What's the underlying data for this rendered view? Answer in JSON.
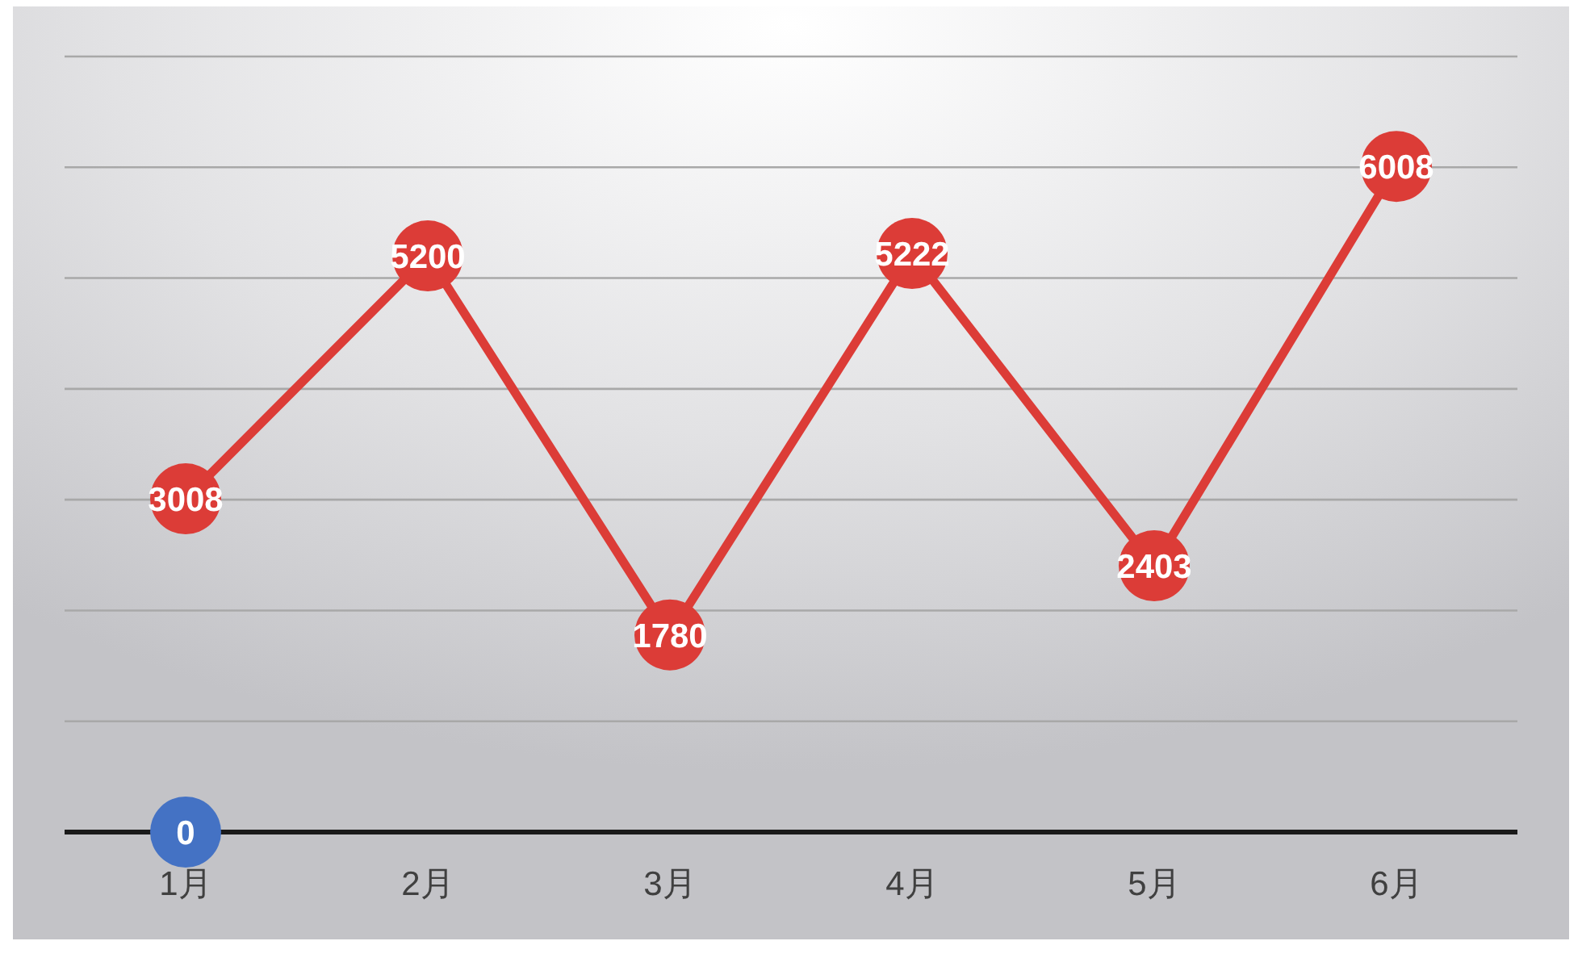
{
  "chart_data": {
    "type": "line",
    "categories": [
      "1月",
      "2月",
      "3月",
      "4月",
      "5月",
      "6月"
    ],
    "series": [
      {
        "color": "#dc3c37",
        "values": [
          3008,
          5200,
          1780,
          5222,
          2403,
          6008
        ]
      },
      {
        "type": "scatter",
        "color": "#4472c4",
        "values": [
          0,
          null,
          null,
          null,
          null,
          null
        ]
      }
    ],
    "data_labels": true,
    "ylim": [
      0,
      7000
    ],
    "yticks": [
      {
        "value": 0,
        "label": null
      },
      {
        "value": 1000,
        "label": null
      },
      {
        "value": 2000,
        "label": null
      },
      {
        "value": 3000,
        "label": null
      },
      {
        "value": 4000,
        "label": null
      },
      {
        "value": 5000,
        "label": null
      },
      {
        "value": 6000,
        "label": null
      },
      {
        "value": 7000,
        "label": null
      }
    ],
    "grid": "y",
    "tick_labels": "x",
    "marker": "circle",
    "line_style": "solid"
  }
}
